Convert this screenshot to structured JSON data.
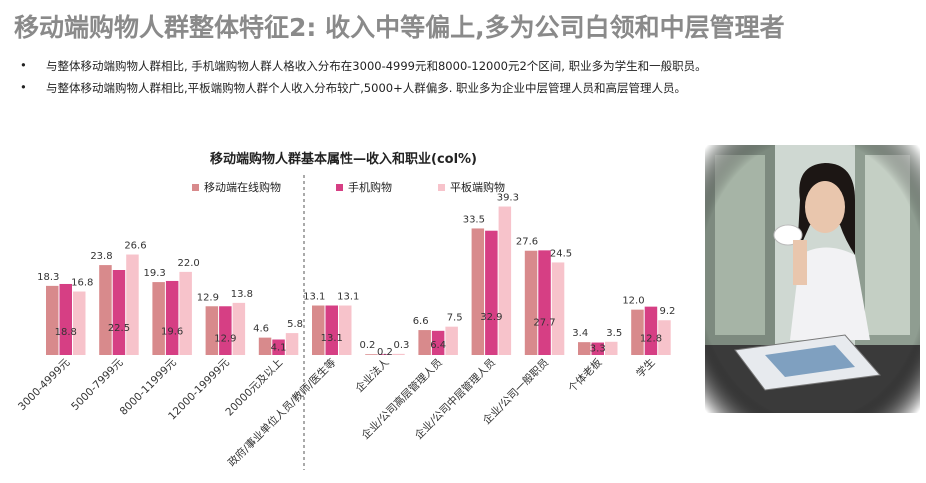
{
  "title": "移动端购物人群整体特征2: 收入中等偏上,多为公司白领和中层管理者",
  "bullets": [
    "与整体移动端购物人群相比, 手机端购物人群人格收入分布在3000-4999元和8000-12000元2个区间, 职业多为学生和一般职员。",
    "与整体移动端购物人群相比,平板端购物人群个人收入分布较广,5000+人群偏多. 职业多为企业中层管理人员和高层管理人员。"
  ],
  "chart_data": {
    "type": "bar",
    "title": "移动端购物人群基本属性—收入和职业(col%)",
    "categories": [
      "3000-4999元",
      "5000-7999元",
      "8000-11999元",
      "12000-19999元",
      "20000元及以上",
      "政府/事业单位人员/教师/医生等",
      "企业法人",
      "企业/公司高层管理人员",
      "企业/公司中层管理人员",
      "企业/公司一般职员",
      "个体老板",
      "学生"
    ],
    "series": [
      {
        "name": "移动端在线购物",
        "color": "#d88a8c",
        "values": [
          18.3,
          23.8,
          19.3,
          12.9,
          4.6,
          13.1,
          0.2,
          6.6,
          33.5,
          27.6,
          3.4,
          12.0
        ]
      },
      {
        "name": "手机购物",
        "color": "#d63f84",
        "values": [
          18.8,
          22.5,
          19.6,
          12.9,
          4.1,
          13.1,
          0.2,
          6.4,
          32.9,
          27.7,
          3.3,
          12.8
        ]
      },
      {
        "name": "平板端购物",
        "color": "#f7c3cb",
        "values": [
          16.8,
          26.6,
          22.0,
          13.8,
          5.8,
          13.1,
          0.3,
          7.5,
          39.3,
          24.5,
          3.5,
          9.2
        ]
      }
    ],
    "value_labels": [
      [
        "18.3",
        "23.8",
        "19.3",
        "12.9",
        "4.6",
        "13.1",
        "0.2",
        "6.6",
        "33.5",
        "27.6",
        "3.4",
        "12.0"
      ],
      [
        "18.8",
        "22.5",
        "19.6",
        "12.9",
        "4.1",
        "13.1",
        "0.2",
        "6.4",
        "32.9",
        "27.7",
        "3.3",
        "12.8"
      ],
      [
        "16.8",
        "26.6",
        "22.0",
        "13.8",
        "5.8",
        "13.1",
        "0.3",
        "7.5",
        "39.3",
        "24.5",
        "3.5",
        "9.2"
      ]
    ],
    "ylim": [
      0,
      45
    ],
    "xlabel": "",
    "ylabel": ""
  },
  "photo_label": "woman-reading-magazine-photo"
}
